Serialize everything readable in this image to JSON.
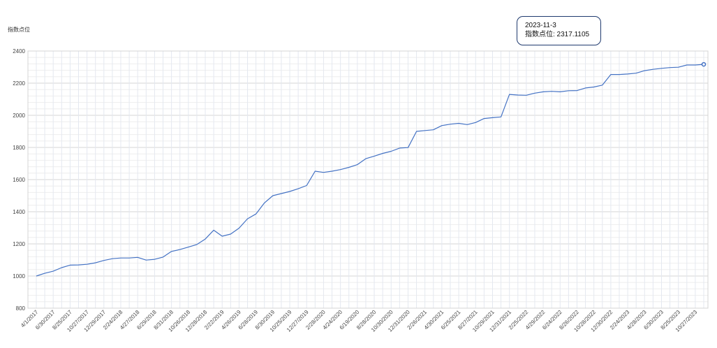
{
  "chart_data": {
    "type": "line",
    "ylabel": "指数点位",
    "ylim": [
      800,
      2400
    ],
    "yticks": [
      800,
      1000,
      1200,
      1400,
      1600,
      1800,
      2000,
      2200,
      2400
    ],
    "grid": true,
    "line_color": "#4472c4",
    "tick_labels": [
      "4/1/2017",
      "6/30/2017",
      "8/25/2017",
      "10/27/2017",
      "12/29/2017",
      "2/24/2018",
      "4/27/2018",
      "6/29/2018",
      "8/31/2018",
      "10/26/2018",
      "12/28/2018",
      "2/22/2019",
      "4/26/2019",
      "6/28/2019",
      "8/30/2019",
      "10/25/2019",
      "12/27/2019",
      "2/28/2020",
      "4/24/2020",
      "6/19/2020",
      "8/28/2020",
      "10/30/2020",
      "12/31/2020",
      "2/26/2021",
      "4/30/2021",
      "6/25/2021",
      "8/27/2021",
      "10/29/2021",
      "12/31/2021",
      "2/25/2022",
      "4/29/2022",
      "6/24/2022",
      "8/26/2022",
      "10/28/2022",
      "12/30/2022",
      "2/24/2023",
      "4/28/2023",
      "6/30/2023",
      "8/25/2023",
      "10/27/2023"
    ],
    "values": [
      1000,
      1017,
      1030,
      1052,
      1068,
      1069,
      1073,
      1082,
      1097,
      1108,
      1112,
      1112,
      1116,
      1099,
      1104,
      1118,
      1153,
      1165,
      1180,
      1196,
      1230,
      1285,
      1248,
      1261,
      1298,
      1356,
      1386,
      1455,
      1500,
      1513,
      1526,
      1543,
      1563,
      1652,
      1645,
      1652,
      1662,
      1676,
      1693,
      1730,
      1746,
      1763,
      1776,
      1796,
      1799,
      1900,
      1905,
      1910,
      1936,
      1945,
      1950,
      1942,
      1955,
      1980,
      1985,
      1990,
      2130,
      2126,
      2125,
      2138,
      2146,
      2149,
      2146,
      2153,
      2154,
      2170,
      2176,
      2188,
      2254,
      2254,
      2257,
      2262,
      2278,
      2286,
      2292,
      2297,
      2299,
      2313,
      2313,
      2317.1105
    ],
    "tooltip": {
      "date": "2023-11-3",
      "text": "指数点位: 2317.1105"
    }
  }
}
